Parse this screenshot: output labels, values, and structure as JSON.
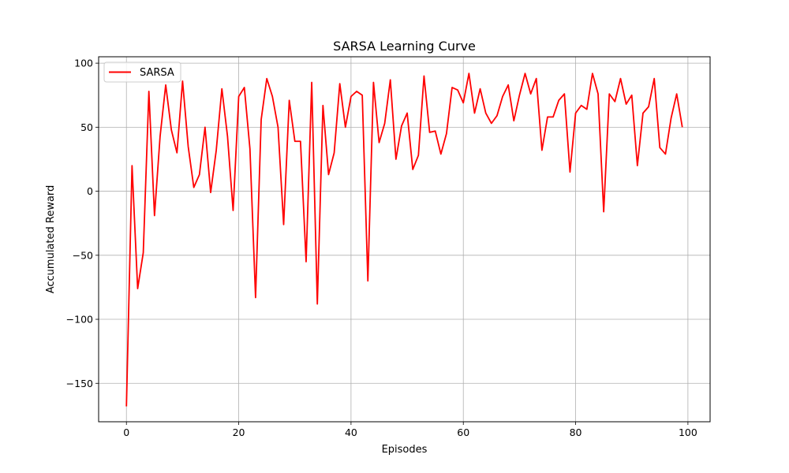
{
  "chart_data": {
    "type": "line",
    "title": "SARSA Learning Curve",
    "xlabel": "Episodes",
    "ylabel": "Accumulated Reward",
    "xlim": [
      -4.95,
      103.95
    ],
    "ylim": [
      -180,
      105
    ],
    "xticks": [
      0,
      20,
      40,
      60,
      80,
      100
    ],
    "yticks": [
      -150,
      -100,
      -50,
      0,
      50,
      100
    ],
    "xtick_labels": [
      "0",
      "20",
      "40",
      "60",
      "80",
      "100"
    ],
    "ytick_labels": [
      "−150",
      "−100",
      "−50",
      "0",
      "50",
      "100"
    ],
    "grid": true,
    "legend_position": "top-left",
    "series": [
      {
        "name": "SARSA",
        "color": "#ff0000",
        "x": [
          0,
          1,
          2,
          3,
          4,
          5,
          6,
          7,
          8,
          9,
          10,
          11,
          12,
          13,
          14,
          15,
          16,
          17,
          18,
          19,
          20,
          21,
          22,
          23,
          24,
          25,
          26,
          27,
          28,
          29,
          30,
          31,
          32,
          33,
          34,
          35,
          36,
          37,
          38,
          39,
          40,
          41,
          42,
          43,
          44,
          45,
          46,
          47,
          48,
          49,
          50,
          51,
          52,
          53,
          54,
          55,
          56,
          57,
          58,
          59,
          60,
          61,
          62,
          63,
          64,
          65,
          66,
          67,
          68,
          69,
          70,
          71,
          72,
          73,
          74,
          75,
          76,
          77,
          78,
          79,
          80,
          81,
          82,
          83,
          84,
          85,
          86,
          87,
          88,
          89,
          90,
          91,
          92,
          93,
          94,
          95,
          96,
          97,
          98,
          99
        ],
        "values": [
          -168,
          20,
          -76,
          -48,
          78,
          -19,
          43,
          83,
          48,
          30,
          86,
          35,
          3,
          13,
          50,
          -1,
          32,
          80,
          43,
          -15,
          74,
          81,
          33,
          -83,
          56,
          88,
          74,
          50,
          -26,
          71,
          39,
          39,
          -55,
          85,
          -88,
          67,
          13,
          30,
          84,
          50,
          74,
          78,
          75,
          -70,
          85,
          38,
          53,
          87,
          25,
          51,
          61,
          17,
          28,
          90,
          46,
          47,
          29,
          45,
          81,
          79,
          69,
          92,
          61,
          80,
          61,
          53,
          59,
          74,
          83,
          55,
          75,
          92,
          76,
          88,
          32,
          58,
          58,
          71,
          76,
          15,
          61,
          67,
          64,
          92,
          76,
          -16,
          76,
          70,
          88,
          68,
          75,
          20,
          61,
          66,
          88,
          34,
          29,
          57,
          76,
          50
        ]
      }
    ]
  }
}
